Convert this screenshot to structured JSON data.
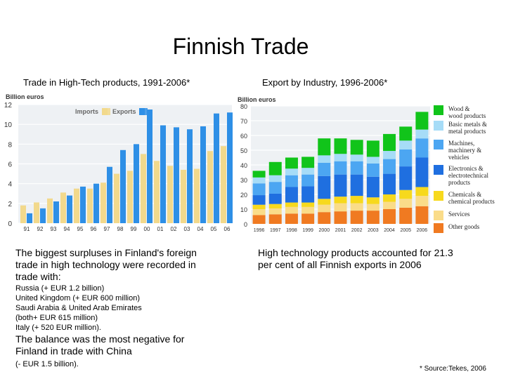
{
  "title": "Finnish Trade",
  "footnote": "* Source:Tekes, 2006",
  "left_text": {
    "intro": "The biggest surpluses in Finland's foreign trade in high technology were recorded in trade with:",
    "lines": [
      "Russia (+ EUR 1.2 billion)",
      "United Kingdom (+ EUR 600 million)",
      "Saudi Arabia & United Arab Emirates",
      "(both+ EUR 615 million)",
      "Italy (+ 520 EUR million)."
    ],
    "negative": "The balance was the most negative for Finland in trade with China",
    "negative_value": "(- EUR 1.5 billion)."
  },
  "right_text": "High technology products accounted for 21.3 per cent of all Finnish exports in 2006",
  "chart_data": [
    {
      "type": "bar",
      "title": "Trade in High-Tech products, 1991-2006*",
      "ylabel": "Billion euros",
      "ylim": [
        0,
        12
      ],
      "yticks": [
        0,
        2,
        4,
        6,
        8,
        10,
        12
      ],
      "grid": true,
      "legend": "top",
      "categories": [
        "91",
        "92",
        "93",
        "94",
        "95",
        "96",
        "97",
        "98",
        "99",
        "00",
        "01",
        "02",
        "03",
        "04",
        "05",
        "06"
      ],
      "series": [
        {
          "name": "Imports",
          "color": "#f2d98c",
          "values": [
            1.8,
            2.1,
            2.5,
            3.1,
            3.5,
            3.5,
            4.1,
            5.0,
            5.3,
            7.0,
            6.3,
            5.8,
            5.4,
            5.5,
            7.3,
            7.8
          ]
        },
        {
          "name": "Exports",
          "color": "#2e8fe6",
          "values": [
            1.0,
            1.5,
            2.2,
            2.8,
            3.7,
            4.0,
            5.7,
            7.4,
            8.0,
            11.5,
            9.9,
            9.7,
            9.5,
            9.8,
            11.1,
            11.2
          ]
        }
      ]
    },
    {
      "type": "bar",
      "stacked": true,
      "title": "Export by Industry, 1996-2006*",
      "ylabel": "Billion euros",
      "ylim": [
        0,
        80
      ],
      "yticks": [
        0,
        10,
        20,
        30,
        40,
        50,
        60,
        70,
        80
      ],
      "grid": true,
      "legend": "right",
      "categories": [
        "1996",
        "1997",
        "1998",
        "1999",
        "2000",
        "2001",
        "2002",
        "2003",
        "2004",
        "2005",
        "2006"
      ],
      "series": [
        {
          "name": "Other goods",
          "color": "#f07a21",
          "values": [
            6.0,
            6.5,
            7.0,
            7.0,
            8.0,
            8.5,
            9.0,
            9.0,
            10.0,
            11.0,
            12.0
          ]
        },
        {
          "name": "Services",
          "color": "#fadc89",
          "values": [
            4.0,
            4.0,
            4.5,
            4.5,
            5.0,
            5.5,
            5.0,
            4.5,
            5.0,
            6.0,
            7.0
          ]
        },
        {
          "name": "Chemicals & chemical products",
          "color": "#f7d91d",
          "values": [
            3.0,
            3.0,
            3.0,
            3.0,
            4.0,
            4.5,
            5.0,
            4.5,
            5.0,
            6.0,
            6.0
          ]
        },
        {
          "name": "Electronics & electrotechnical products",
          "color": "#1f6fe0",
          "values": [
            6.5,
            7.0,
            10.5,
            11.0,
            15.5,
            15.0,
            14.5,
            14.0,
            14.0,
            16.0,
            20.0
          ]
        },
        {
          "name": "Machines, machinery & vehicles",
          "color": "#4ca6f2",
          "values": [
            8.0,
            8.0,
            8.0,
            8.0,
            9.0,
            9.0,
            9.0,
            9.0,
            10.0,
            11.5,
            13.0
          ]
        },
        {
          "name": "Basic metals & metal products",
          "color": "#a6dcf7",
          "values": [
            4.0,
            4.5,
            4.5,
            4.5,
            5.0,
            5.0,
            4.5,
            4.5,
            5.5,
            6.0,
            6.0
          ]
        },
        {
          "name": "Wood & wood products",
          "color": "#11c41a",
          "values": [
            4.5,
            9.0,
            7.5,
            7.5,
            11.5,
            10.5,
            10.0,
            11.0,
            11.5,
            9.5,
            12.0
          ]
        }
      ]
    }
  ]
}
